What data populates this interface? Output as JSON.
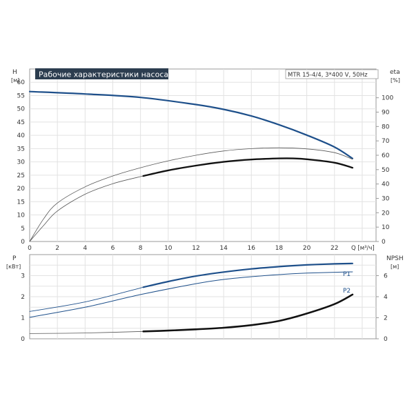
{
  "chart_data": [
    {
      "type": "line",
      "title": "Рабочие характеристики насоса",
      "subtitle": "MTR 15-4/4, 3*400 V, 50Hz",
      "xlabel": "Q [м³/ч]",
      "ylabel": "H",
      "ylabel_unit": "[м]",
      "y2label": "eta",
      "y2label_unit": "[%]",
      "xlim": [
        0,
        25
      ],
      "ylim": [
        0,
        65
      ],
      "y2lim": [
        0,
        120
      ],
      "x_ticks": [
        "0",
        "2",
        "4",
        "6",
        "8",
        "10",
        "12",
        "14",
        "16",
        "18",
        "20",
        "22"
      ],
      "y_ticks": [
        "0",
        "5",
        "10",
        "15",
        "20",
        "25",
        "30",
        "35",
        "40",
        "45",
        "50",
        "55",
        "60"
      ],
      "y2_ticks": [
        "0",
        "10",
        "20",
        "30",
        "40",
        "50",
        "60",
        "70",
        "80",
        "90",
        "100"
      ],
      "grid": true,
      "series": [
        {
          "axis": "left",
          "color": "#1d4f8a",
          "width": 2.2,
          "x": [
            0,
            4,
            8,
            12,
            14,
            16,
            18,
            20,
            22,
            23.3
          ],
          "values": [
            56.5,
            55.6,
            54.3,
            51.6,
            49.8,
            47.3,
            44.0,
            40.1,
            35.6,
            31.3
          ]
        },
        {
          "axis": "left",
          "color": "#555555",
          "width": 0.8,
          "x": [
            0,
            1,
            2,
            4,
            6,
            8,
            10,
            12,
            14,
            16,
            18,
            20,
            22,
            23.3
          ],
          "values": [
            0,
            8.5,
            14.5,
            20.6,
            24.7,
            27.8,
            30.4,
            32.5,
            34.1,
            35.0,
            35.3,
            34.9,
            33.5,
            31.0
          ]
        },
        {
          "axis": "left",
          "color": "#555555",
          "width": 0.8,
          "x": [
            0,
            1,
            2,
            4,
            6,
            8.2
          ],
          "values": [
            0,
            6.0,
            11.5,
            17.8,
            21.8,
            24.7
          ]
        },
        {
          "axis": "left",
          "color": "#111111",
          "width": 2.4,
          "x": [
            8.2,
            10,
            12,
            14,
            16,
            18,
            19,
            20,
            22,
            23.3
          ],
          "values": [
            24.7,
            26.8,
            28.6,
            30.0,
            30.9,
            31.3,
            31.3,
            31.0,
            29.7,
            27.8
          ]
        }
      ]
    },
    {
      "type": "line",
      "ylabel": "P",
      "ylabel_unit": "[кВт]",
      "y2label": "NPSH",
      "y2label_unit": "[м]",
      "xlim": [
        0,
        25
      ],
      "ylim": [
        0,
        4
      ],
      "y2lim": [
        0,
        8
      ],
      "y_ticks": [
        "0",
        "1",
        "2",
        "3"
      ],
      "y2_ticks": [
        "0",
        "2",
        "4",
        "6"
      ],
      "grid": true,
      "annotations": [
        "P1",
        "P2"
      ],
      "series": [
        {
          "axis": "left",
          "color": "#1d4f8a",
          "width": 0.9,
          "x": [
            0,
            4,
            8.2
          ],
          "values": [
            1.3,
            1.75,
            2.45
          ]
        },
        {
          "axis": "left",
          "color": "#1d4f8a",
          "width": 2.2,
          "x": [
            8.2,
            10,
            12,
            14,
            16,
            18,
            20,
            22,
            23.3
          ],
          "values": [
            2.45,
            2.72,
            2.98,
            3.17,
            3.32,
            3.43,
            3.51,
            3.56,
            3.58
          ]
        },
        {
          "axis": "left",
          "color": "#1d4f8a",
          "width": 1.0,
          "x": [
            0,
            4,
            8,
            12,
            14,
            16,
            18,
            20,
            22,
            23.3
          ],
          "values": [
            1.02,
            1.5,
            2.1,
            2.62,
            2.82,
            2.95,
            3.05,
            3.12,
            3.16,
            3.18
          ]
        },
        {
          "axis": "right",
          "color": "#555555",
          "width": 0.8,
          "x": [
            0,
            4,
            8.2
          ],
          "values": [
            0.5,
            0.55,
            0.7
          ]
        },
        {
          "axis": "right",
          "color": "#111111",
          "width": 2.6,
          "x": [
            8.2,
            10,
            12,
            14,
            16,
            18,
            20,
            22,
            23.3
          ],
          "values": [
            0.7,
            0.78,
            0.9,
            1.05,
            1.3,
            1.7,
            2.4,
            3.3,
            4.2
          ]
        }
      ]
    }
  ]
}
